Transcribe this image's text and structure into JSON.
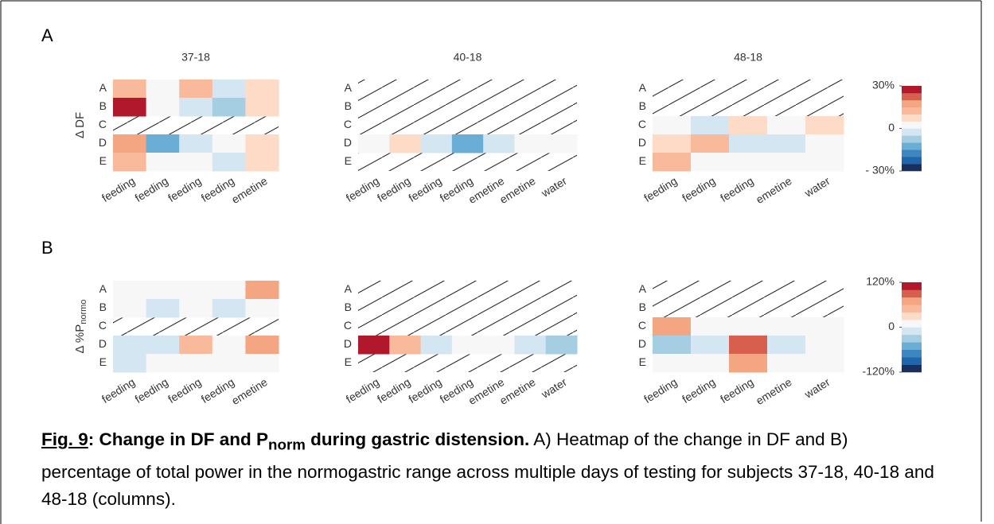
{
  "subjects": [
    "37-18",
    "40-18",
    "48-18"
  ],
  "panels": [
    {
      "label": "A",
      "ylabel": {
        "text": "Δ DF"
      },
      "clim": [
        -30,
        30
      ],
      "cticks": [
        {
          "value": 30,
          "label": "30%"
        },
        0,
        {
          "value": -30,
          "label": "- 30%"
        }
      ],
      "colormap": [
        "#1b2f5c",
        "#2166ac",
        "#3d87c0",
        "#6aaed6",
        "#a6cee3",
        "#d4e6f1",
        "#f7f7f7",
        "#fddbc7",
        "#f9b99b",
        "#f4a582",
        "#d6604d",
        "#b2182b"
      ],
      "heatmaps": [
        {
          "rows": [
            "A",
            "B",
            "C",
            "D",
            "E"
          ],
          "columns": [
            "feeding",
            "feeding",
            "feeding",
            "feeding",
            "emetine"
          ],
          "values": [
            [
              10,
              0,
              10,
              -5,
              5
            ],
            [
              28,
              0,
              -3,
              -10,
              5
            ],
            [
              null,
              null,
              null,
              null,
              null
            ],
            [
              18,
              -12,
              -5,
              0,
              5
            ],
            [
              10,
              0,
              0,
              -5,
              5
            ]
          ]
        },
        {
          "rows": [
            "A",
            "B",
            "C",
            "D",
            "E"
          ],
          "columns": [
            "feeding",
            "feeding",
            "feeding",
            "feeding",
            "emetine",
            "emetine",
            "water"
          ],
          "values": [
            [
              null,
              null,
              null,
              null,
              null,
              null,
              null
            ],
            [
              null,
              null,
              null,
              null,
              null,
              null,
              null
            ],
            [
              null,
              null,
              null,
              null,
              null,
              null,
              null
            ],
            [
              0,
              5,
              -5,
              -12,
              -5,
              0,
              0
            ],
            [
              null,
              null,
              null,
              null,
              null,
              null,
              null
            ]
          ]
        },
        {
          "rows": [
            "A",
            "B",
            "C",
            "D",
            "E"
          ],
          "columns": [
            "feeding",
            "feeding",
            "feeding",
            "emetine",
            "water"
          ],
          "values": [
            [
              null,
              null,
              null,
              null,
              null
            ],
            [
              null,
              null,
              null,
              null,
              null
            ],
            [
              0,
              -5,
              5,
              0,
              5
            ],
            [
              5,
              10,
              -5,
              -5,
              0
            ],
            [
              10,
              0,
              0,
              0,
              0
            ]
          ]
        }
      ]
    },
    {
      "label": "B",
      "ylabel": {
        "text": "Δ %P",
        "sub": "normo"
      },
      "clim": [
        -120,
        120
      ],
      "cticks": [
        {
          "value": 120,
          "label": "120%"
        },
        0,
        {
          "value": -120,
          "label": "-120%"
        }
      ],
      "colormap": [
        "#1b2f5c",
        "#2166ac",
        "#3d87c0",
        "#6aaed6",
        "#a6cee3",
        "#d4e6f1",
        "#f7f7f7",
        "#fddbc7",
        "#f9b99b",
        "#f4a582",
        "#d6604d",
        "#b2182b"
      ],
      "heatmaps": [
        {
          "rows": [
            "A",
            "B",
            "C",
            "D",
            "E"
          ],
          "columns": [
            "feeding",
            "feeding",
            "feeding",
            "feeding",
            "emetine"
          ],
          "values": [
            [
              0,
              10,
              0,
              10,
              70
            ],
            [
              0,
              -10,
              0,
              -10,
              0
            ],
            [
              null,
              null,
              null,
              null,
              null
            ],
            [
              -10,
              -10,
              40,
              0,
              70
            ],
            [
              -10,
              10,
              10,
              0,
              0
            ]
          ]
        },
        {
          "rows": [
            "A",
            "B",
            "C",
            "D",
            "E"
          ],
          "columns": [
            "feeding",
            "feeding",
            "feeding",
            "feeding",
            "emetine",
            "emetine",
            "water"
          ],
          "values": [
            [
              null,
              null,
              null,
              null,
              null,
              null,
              null
            ],
            [
              null,
              null,
              null,
              null,
              null,
              null,
              null
            ],
            [
              null,
              null,
              null,
              null,
              null,
              null,
              null
            ],
            [
              110,
              40,
              -10,
              0,
              10,
              -10,
              -40
            ],
            [
              null,
              null,
              null,
              null,
              null,
              null,
              null
            ]
          ]
        },
        {
          "rows": [
            "A",
            "B",
            "C",
            "D",
            "E"
          ],
          "columns": [
            "feeding",
            "feeding",
            "feeding",
            "emetine",
            "water"
          ],
          "values": [
            [
              null,
              null,
              null,
              null,
              null
            ],
            [
              null,
              null,
              null,
              null,
              null
            ],
            [
              70,
              10,
              0,
              0,
              10
            ],
            [
              -40,
              -10,
              90,
              -10,
              0
            ],
            [
              10,
              0,
              70,
              0,
              10
            ]
          ]
        }
      ]
    }
  ],
  "caption": {
    "fig_label": "Fig. 9",
    "title": "Change in DF and P",
    "title_sub": "norm",
    "title_end": "during gastric distension.",
    "body": "A) Heatmap of the change in DF and B) percentage of total power in the normogastric range across multiple days of testing for subjects 37-18, 40-18 and 48-18 (columns)."
  }
}
